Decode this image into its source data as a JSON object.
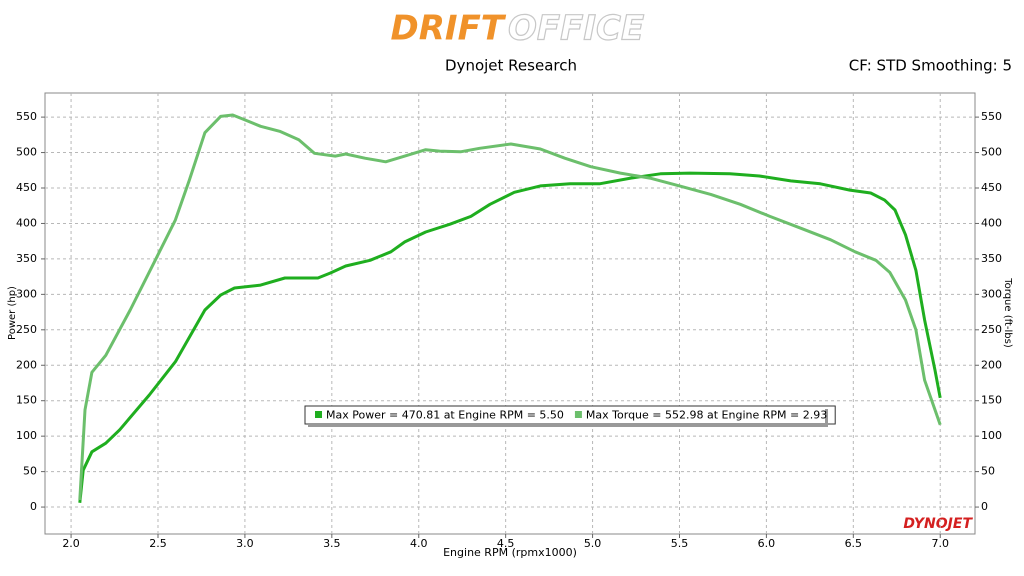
{
  "chart_data": {
    "type": "line",
    "logo_left": "DRIFT",
    "logo_right": "OFFICE",
    "title": "Dynojet Research",
    "subtitle": "CF: STD Smoothing: 5",
    "brand": "DYNOJET",
    "xlabel": "Engine RPM (rpmx1000)",
    "ylabel": "Power (hp)",
    "y2label": "Torque (ft-lbs)",
    "xlim": [
      1.85,
      7.2
    ],
    "ylim": [
      -38,
      584
    ],
    "y2lim": [
      -38,
      584
    ],
    "xticks": [
      {
        "value": 2,
        "label": "2.0"
      },
      2.5,
      {
        "value": 3,
        "label": "3.0"
      },
      3.5,
      {
        "value": 4,
        "label": "4.0"
      },
      4.5,
      {
        "value": 5,
        "label": "5.0"
      },
      5.5,
      {
        "value": 6,
        "label": "6.0"
      },
      6.5,
      {
        "value": 7,
        "label": "7.0"
      }
    ],
    "yticks": [
      0,
      50,
      100,
      150,
      200,
      250,
      300,
      350,
      400,
      450,
      500,
      550
    ],
    "y2ticks": [
      0,
      50,
      100,
      150,
      200,
      250,
      300,
      350,
      400,
      450,
      500,
      550
    ],
    "grid": true,
    "series": [
      {
        "name": "Max Power = 470.81 at Engine RPM = 5.50",
        "color": "#1fae1f",
        "x": [
          2.05,
          2.07,
          2.12,
          2.2,
          2.28,
          2.45,
          2.6,
          2.77,
          2.86,
          2.94,
          3.09,
          3.23,
          3.42,
          3.49,
          3.58,
          3.72,
          3.84,
          3.92,
          4.04,
          4.18,
          4.3,
          4.41,
          4.55,
          4.7,
          4.87,
          5.04,
          5.22,
          5.39,
          5.56,
          5.79,
          5.96,
          6.14,
          6.31,
          6.48,
          6.6,
          6.68,
          6.74,
          6.8,
          6.86,
          6.91,
          6.97,
          7.0
        ],
        "values": [
          6,
          52,
          78,
          90,
          109,
          158,
          205,
          278,
          299,
          309,
          313,
          323,
          323,
          330,
          340,
          348,
          360,
          374,
          388,
          399,
          410,
          427,
          444,
          453,
          456,
          456,
          464,
          470,
          471,
          470,
          467,
          460,
          456,
          447,
          443,
          433,
          419,
          384,
          334,
          264,
          193,
          154
        ]
      },
      {
        "name": "Max Torque = 552.98 at Engine RPM = 2.93",
        "color": "#6cbf6c",
        "axis": "y2",
        "x": [
          2.05,
          2.08,
          2.12,
          2.2,
          2.34,
          2.48,
          2.6,
          2.68,
          2.77,
          2.86,
          2.93,
          3.0,
          3.09,
          3.2,
          3.31,
          3.4,
          3.52,
          3.58,
          3.69,
          3.81,
          3.92,
          4.04,
          4.12,
          4.24,
          4.35,
          4.53,
          4.7,
          4.84,
          4.99,
          5.16,
          5.33,
          5.5,
          5.68,
          5.85,
          6.02,
          6.19,
          6.37,
          6.51,
          6.63,
          6.71,
          6.8,
          6.86,
          6.91,
          6.97,
          7.0
        ],
        "values": [
          10,
          137,
          190,
          214,
          278,
          346,
          405,
          461,
          528,
          551,
          553,
          546,
          537,
          530,
          518,
          499,
          495,
          498,
          492,
          487,
          495,
          504,
          502,
          501,
          506,
          512,
          505,
          492,
          480,
          471,
          464,
          453,
          441,
          427,
          410,
          394,
          377,
          360,
          348,
          331,
          292,
          250,
          179,
          137,
          116
        ]
      }
    ]
  }
}
